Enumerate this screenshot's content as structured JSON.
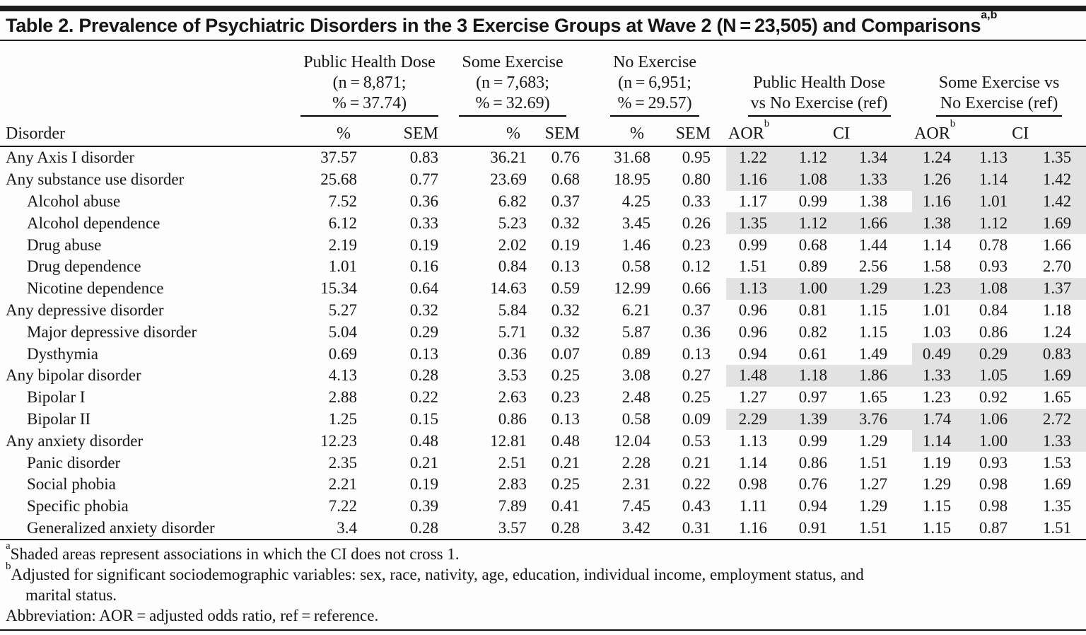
{
  "title": {
    "text": "Table 2. Prevalence of Psychiatric Disorders in the 3 Exercise Groups at Wave 2 (N = 23,505) and Comparisons",
    "sup": "a,b"
  },
  "header": {
    "disorder_label": "Disorder",
    "pct_label": "%",
    "sem_label": "SEM",
    "aor_label": "AOR",
    "aor_sup": "b",
    "ci_label": "CI",
    "groups": [
      {
        "line1": "Public Health Dose",
        "line2": "(n = 8,871;",
        "line3": "% = 37.74)"
      },
      {
        "line1": "Some Exercise",
        "line2": "(n = 7,683;",
        "line3": "% = 32.69)"
      },
      {
        "line1": "No Exercise",
        "line2": "(n = 6,951;",
        "line3": "% = 29.57)"
      },
      {
        "line1": "Public Health Dose",
        "line2": "vs No Exercise (ref)"
      },
      {
        "line1": "Some Exercise vs",
        "line2": "No Exercise (ref)"
      }
    ]
  },
  "rows": [
    {
      "name": "Any Axis I disorder",
      "indent": false,
      "pct1": "37.57",
      "sem1": "0.83",
      "pct2": "36.21",
      "sem2": "0.76",
      "pct3": "31.68",
      "sem3": "0.95",
      "aor1": "1.22",
      "lo1": "1.12",
      "hi1": "1.34",
      "sh1": true,
      "aor2": "1.24",
      "lo2": "1.13",
      "hi2": "1.35",
      "sh2": true
    },
    {
      "name": "Any substance use disorder",
      "indent": false,
      "pct1": "25.68",
      "sem1": "0.77",
      "pct2": "23.69",
      "sem2": "0.68",
      "pct3": "18.95",
      "sem3": "0.80",
      "aor1": "1.16",
      "lo1": "1.08",
      "hi1": "1.33",
      "sh1": true,
      "aor2": "1.26",
      "lo2": "1.14",
      "hi2": "1.42",
      "sh2": true
    },
    {
      "name": "Alcohol abuse",
      "indent": true,
      "pct1": "7.52",
      "sem1": "0.36",
      "pct2": "6.82",
      "sem2": "0.37",
      "pct3": "4.25",
      "sem3": "0.33",
      "aor1": "1.17",
      "lo1": "0.99",
      "hi1": "1.38",
      "sh1": false,
      "aor2": "1.16",
      "lo2": "1.01",
      "hi2": "1.42",
      "sh2": true
    },
    {
      "name": "Alcohol dependence",
      "indent": true,
      "pct1": "6.12",
      "sem1": "0.33",
      "pct2": "5.23",
      "sem2": "0.32",
      "pct3": "3.45",
      "sem3": "0.26",
      "aor1": "1.35",
      "lo1": "1.12",
      "hi1": "1.66",
      "sh1": true,
      "aor2": "1.38",
      "lo2": "1.12",
      "hi2": "1.69",
      "sh2": true
    },
    {
      "name": "Drug abuse",
      "indent": true,
      "pct1": "2.19",
      "sem1": "0.19",
      "pct2": "2.02",
      "sem2": "0.19",
      "pct3": "1.46",
      "sem3": "0.23",
      "aor1": "0.99",
      "lo1": "0.68",
      "hi1": "1.44",
      "sh1": false,
      "aor2": "1.14",
      "lo2": "0.78",
      "hi2": "1.66",
      "sh2": false
    },
    {
      "name": "Drug dependence",
      "indent": true,
      "pct1": "1.01",
      "sem1": "0.16",
      "pct2": "0.84",
      "sem2": "0.13",
      "pct3": "0.58",
      "sem3": "0.12",
      "aor1": "1.51",
      "lo1": "0.89",
      "hi1": "2.56",
      "sh1": false,
      "aor2": "1.58",
      "lo2": "0.93",
      "hi2": "2.70",
      "sh2": false
    },
    {
      "name": "Nicotine dependence",
      "indent": true,
      "pct1": "15.34",
      "sem1": "0.64",
      "pct2": "14.63",
      "sem2": "0.59",
      "pct3": "12.99",
      "sem3": "0.66",
      "aor1": "1.13",
      "lo1": "1.00",
      "hi1": "1.29",
      "sh1": true,
      "aor2": "1.23",
      "lo2": "1.08",
      "hi2": "1.37",
      "sh2": true
    },
    {
      "name": "Any depressive disorder",
      "indent": false,
      "pct1": "5.27",
      "sem1": "0.32",
      "pct2": "5.84",
      "sem2": "0.32",
      "pct3": "6.21",
      "sem3": "0.37",
      "aor1": "0.96",
      "lo1": "0.81",
      "hi1": "1.15",
      "sh1": false,
      "aor2": "1.01",
      "lo2": "0.84",
      "hi2": "1.18",
      "sh2": false
    },
    {
      "name": "Major depressive disorder",
      "indent": true,
      "pct1": "5.04",
      "sem1": "0.29",
      "pct2": "5.71",
      "sem2": "0.32",
      "pct3": "5.87",
      "sem3": "0.36",
      "aor1": "0.96",
      "lo1": "0.82",
      "hi1": "1.15",
      "sh1": false,
      "aor2": "1.03",
      "lo2": "0.86",
      "hi2": "1.24",
      "sh2": false
    },
    {
      "name": "Dysthymia",
      "indent": true,
      "pct1": "0.69",
      "sem1": "0.13",
      "pct2": "0.36",
      "sem2": "0.07",
      "pct3": "0.89",
      "sem3": "0.13",
      "aor1": "0.94",
      "lo1": "0.61",
      "hi1": "1.49",
      "sh1": false,
      "aor2": "0.49",
      "lo2": "0.29",
      "hi2": "0.83",
      "sh2": true
    },
    {
      "name": "Any bipolar disorder",
      "indent": false,
      "pct1": "4.13",
      "sem1": "0.28",
      "pct2": "3.53",
      "sem2": "0.25",
      "pct3": "3.08",
      "sem3": "0.27",
      "aor1": "1.48",
      "lo1": "1.18",
      "hi1": "1.86",
      "sh1": true,
      "aor2": "1.33",
      "lo2": "1.05",
      "hi2": "1.69",
      "sh2": true
    },
    {
      "name": "Bipolar I",
      "indent": true,
      "pct1": "2.88",
      "sem1": "0.22",
      "pct2": "2.63",
      "sem2": "0.23",
      "pct3": "2.48",
      "sem3": "0.25",
      "aor1": "1.27",
      "lo1": "0.97",
      "hi1": "1.65",
      "sh1": false,
      "aor2": "1.23",
      "lo2": "0.92",
      "hi2": "1.65",
      "sh2": false
    },
    {
      "name": "Bipolar II",
      "indent": true,
      "pct1": "1.25",
      "sem1": "0.15",
      "pct2": "0.86",
      "sem2": "0.13",
      "pct3": "0.58",
      "sem3": "0.09",
      "aor1": "2.29",
      "lo1": "1.39",
      "hi1": "3.76",
      "sh1": true,
      "aor2": "1.74",
      "lo2": "1.06",
      "hi2": "2.72",
      "sh2": true
    },
    {
      "name": "Any anxiety disorder",
      "indent": false,
      "pct1": "12.23",
      "sem1": "0.48",
      "pct2": "12.81",
      "sem2": "0.48",
      "pct3": "12.04",
      "sem3": "0.53",
      "aor1": "1.13",
      "lo1": "0.99",
      "hi1": "1.29",
      "sh1": false,
      "aor2": "1.14",
      "lo2": "1.00",
      "hi2": "1.33",
      "sh2": true
    },
    {
      "name": "Panic disorder",
      "indent": true,
      "pct1": "2.35",
      "sem1": "0.21",
      "pct2": "2.51",
      "sem2": "0.21",
      "pct3": "2.28",
      "sem3": "0.21",
      "aor1": "1.14",
      "lo1": "0.86",
      "hi1": "1.51",
      "sh1": false,
      "aor2": "1.19",
      "lo2": "0.93",
      "hi2": "1.53",
      "sh2": false
    },
    {
      "name": "Social phobia",
      "indent": true,
      "pct1": "2.21",
      "sem1": "0.19",
      "pct2": "2.83",
      "sem2": "0.25",
      "pct3": "2.31",
      "sem3": "0.22",
      "aor1": "0.98",
      "lo1": "0.76",
      "hi1": "1.27",
      "sh1": false,
      "aor2": "1.29",
      "lo2": "0.98",
      "hi2": "1.69",
      "sh2": false
    },
    {
      "name": "Specific phobia",
      "indent": true,
      "pct1": "7.22",
      "sem1": "0.39",
      "pct2": "7.89",
      "sem2": "0.41",
      "pct3": "7.45",
      "sem3": "0.43",
      "aor1": "1.11",
      "lo1": "0.94",
      "hi1": "1.29",
      "sh1": false,
      "aor2": "1.15",
      "lo2": "0.98",
      "hi2": "1.35",
      "sh2": false
    },
    {
      "name": "Generalized anxiety disorder",
      "indent": true,
      "pct1": "3.4",
      "sem1": "0.28",
      "pct2": "3.57",
      "sem2": "0.28",
      "pct3": "3.42",
      "sem3": "0.31",
      "aor1": "1.16",
      "lo1": "0.91",
      "hi1": "1.51",
      "sh1": false,
      "aor2": "1.15",
      "lo2": "0.87",
      "hi2": "1.51",
      "sh2": false
    }
  ],
  "footnotes": {
    "a": {
      "marker": "a",
      "text": "Shaded areas represent associations in which the CI does not cross 1."
    },
    "b": {
      "marker": "b",
      "text": "Adjusted for significant sociodemographic variables: sex, race, nativity, age, education, individual income, employment status, and",
      "continued": "marital status."
    },
    "abbreviation": "Abbreviation: AOR = adjusted odds ratio, ref = reference."
  },
  "colors": {
    "shading": "#e2e2e2",
    "rule": "#1c1c1c",
    "text": "#161616"
  }
}
